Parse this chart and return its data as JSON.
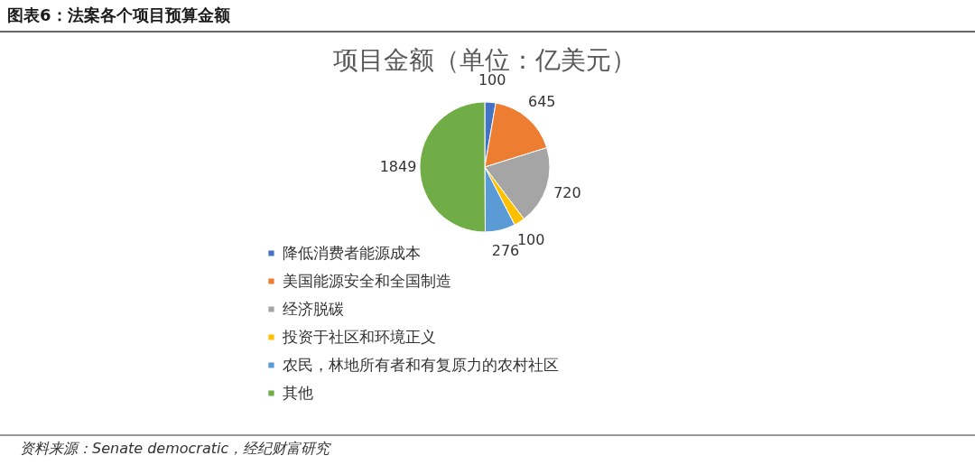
{
  "chart_data": {
    "type": "pie",
    "title": "图表6：法案各个项目预算金额",
    "subtitle": "项目金额（单位：亿美元）",
    "categories": [
      "降低消费者能源成本",
      "美国能源安全和全国制造",
      "经济脱碳",
      "投资于社区和环境正义",
      "农民，林地所有者和有复原力的农村社区",
      "其他"
    ],
    "values": [
      100,
      645,
      720,
      100,
      276,
      1849
    ],
    "colors": [
      "#4472c4",
      "#ed7d31",
      "#a5a5a5",
      "#ffc000",
      "#5b9bd5",
      "#70ad47"
    ],
    "data_labels": true,
    "legend": "bottom left",
    "annotations": [
      "资料来源：Senate democratic，经纪财富研究"
    ]
  }
}
